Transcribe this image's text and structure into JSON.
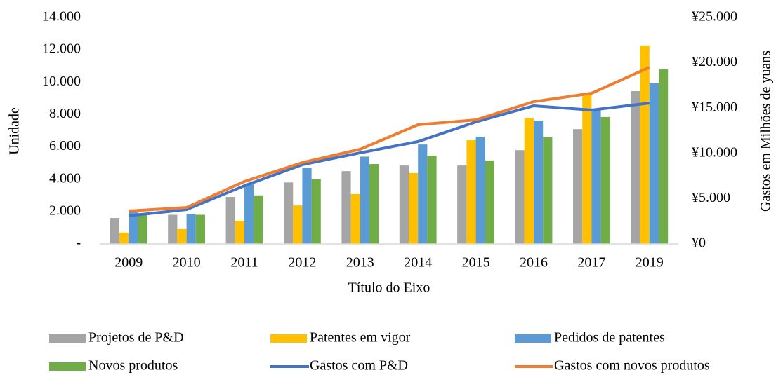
{
  "chart_data": {
    "type": "bar",
    "x_label": "Título do Eixo",
    "y_label": "Unidade",
    "y2_label": "Gastos em Milhões de yuans",
    "categories": [
      "2009",
      "2010",
      "2011",
      "2012",
      "2013",
      "2014",
      "2015",
      "2016",
      "2017",
      "2019"
    ],
    "series": [
      {
        "name": "Projetos de P&D",
        "type": "bar",
        "color": "#a5a5a5",
        "values": [
          1600,
          1800,
          2900,
          3800,
          4500,
          4850,
          4850,
          5800,
          7100,
          9450
        ]
      },
      {
        "name": "Patentes em vigor",
        "type": "bar",
        "color": "#ffc000",
        "values": [
          700,
          950,
          1430,
          2380,
          3080,
          4380,
          6410,
          7800,
          9280,
          12270
        ]
      },
      {
        "name": "Pedidos de patentes",
        "type": "bar",
        "color": "#5b9bd5",
        "values": [
          1950,
          1860,
          3700,
          4700,
          5400,
          6150,
          6630,
          7630,
          8280,
          9930
        ]
      },
      {
        "name": "Novos produtos",
        "type": "bar",
        "color": "#70ad47",
        "values": [
          1900,
          1800,
          3000,
          4000,
          4940,
          5460,
          5160,
          6590,
          7850,
          10790
        ]
      },
      {
        "name": "Gastos com P&D",
        "type": "line",
        "axis": "y2",
        "color": "#4472c4",
        "values": [
          3100,
          3790,
          6420,
          8750,
          10060,
          11300,
          13470,
          15250,
          14780,
          15560
        ]
      },
      {
        "name": "Gastos com novos produtos",
        "type": "line",
        "axis": "y2",
        "color": "#ed7d31",
        "values": [
          3640,
          4020,
          6890,
          8980,
          10450,
          13160,
          13700,
          15710,
          16640,
          19500
        ]
      }
    ],
    "ylim": [
      0,
      14000
    ],
    "yticks": [
      {
        "value": 0,
        "label": "-"
      },
      {
        "value": 2000,
        "label": "2.000"
      },
      {
        "value": 4000,
        "label": "4.000"
      },
      {
        "value": 6000,
        "label": "6.000"
      },
      {
        "value": 8000,
        "label": "8.000"
      },
      {
        "value": 10000,
        "label": "10.000"
      },
      {
        "value": 12000,
        "label": "12.000"
      },
      {
        "value": 14000,
        "label": "14.000"
      }
    ],
    "y2lim": [
      0,
      25000
    ],
    "y2ticks": [
      {
        "value": 0,
        "label": "¥0"
      },
      {
        "value": 5000,
        "label": "¥5.000"
      },
      {
        "value": 10000,
        "label": "¥10.000"
      },
      {
        "value": 15000,
        "label": "¥15.000"
      },
      {
        "value": 20000,
        "label": "¥20.000"
      },
      {
        "value": 25000,
        "label": "¥25.000"
      }
    ],
    "grid": false,
    "legend": "bottom"
  }
}
